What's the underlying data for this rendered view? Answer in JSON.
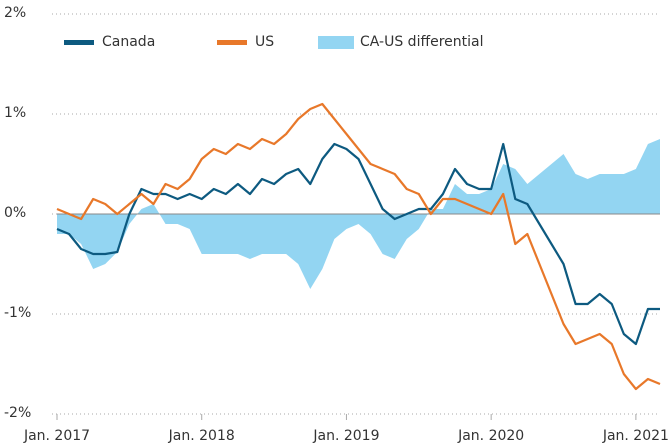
{
  "chart_data": {
    "type": "line",
    "x": [
      "2017-01",
      "2017-02",
      "2017-03",
      "2017-04",
      "2017-05",
      "2017-06",
      "2017-07",
      "2017-08",
      "2017-09",
      "2017-10",
      "2017-11",
      "2017-12",
      "2018-01",
      "2018-02",
      "2018-03",
      "2018-04",
      "2018-05",
      "2018-06",
      "2018-07",
      "2018-08",
      "2018-09",
      "2018-10",
      "2018-11",
      "2018-12",
      "2019-01",
      "2019-02",
      "2019-03",
      "2019-04",
      "2019-05",
      "2019-06",
      "2019-07",
      "2019-08",
      "2019-09",
      "2019-10",
      "2019-11",
      "2019-12",
      "2020-01",
      "2020-02",
      "2020-03",
      "2020-04",
      "2020-05",
      "2020-06",
      "2020-07",
      "2020-08",
      "2020-09",
      "2020-10",
      "2020-11",
      "2020-12",
      "2021-01",
      "2021-02",
      "2021-03"
    ],
    "series": [
      {
        "name": "CA-US differential",
        "kind": "area",
        "color": "#93d5f2",
        "values": [
          -0.2,
          -0.2,
          -0.3,
          -0.55,
          -0.5,
          -0.38,
          -0.1,
          0.05,
          0.1,
          -0.1,
          -0.1,
          -0.15,
          -0.4,
          -0.4,
          -0.4,
          -0.4,
          -0.45,
          -0.4,
          -0.4,
          -0.4,
          -0.5,
          -0.75,
          -0.55,
          -0.25,
          -0.15,
          -0.1,
          -0.2,
          -0.4,
          -0.45,
          -0.25,
          -0.15,
          0.05,
          0.05,
          0.3,
          0.2,
          0.2,
          0.25,
          0.5,
          0.45,
          0.3,
          0.4,
          0.5,
          0.6,
          0.4,
          0.35,
          0.4,
          0.4,
          0.4,
          0.45,
          0.7,
          0.75
        ]
      },
      {
        "name": "Canada",
        "kind": "line",
        "color": "#0d5a80",
        "values": [
          -0.15,
          -0.2,
          -0.35,
          -0.4,
          -0.4,
          -0.38,
          0.0,
          0.25,
          0.2,
          0.2,
          0.15,
          0.2,
          0.15,
          0.25,
          0.2,
          0.3,
          0.2,
          0.35,
          0.3,
          0.4,
          0.45,
          0.3,
          0.55,
          0.7,
          0.65,
          0.55,
          0.3,
          0.05,
          -0.05,
          0.0,
          0.05,
          0.05,
          0.2,
          0.45,
          0.3,
          0.25,
          0.25,
          0.7,
          0.15,
          0.1,
          -0.1,
          -0.3,
          -0.5,
          -0.9,
          -0.9,
          -0.8,
          -0.9,
          -1.2,
          -1.3,
          -0.95,
          -0.95
        ]
      },
      {
        "name": "US",
        "kind": "line",
        "color": "#e8782a",
        "values": [
          0.05,
          0.0,
          -0.05,
          0.15,
          0.1,
          0.0,
          0.1,
          0.2,
          0.1,
          0.3,
          0.25,
          0.35,
          0.55,
          0.65,
          0.6,
          0.7,
          0.65,
          0.75,
          0.7,
          0.8,
          0.95,
          1.05,
          1.1,
          0.95,
          0.8,
          0.65,
          0.5,
          0.45,
          0.4,
          0.25,
          0.2,
          0.0,
          0.15,
          0.15,
          0.1,
          0.05,
          0.0,
          0.2,
          -0.3,
          -0.2,
          -0.5,
          -0.8,
          -1.1,
          -1.3,
          -1.25,
          -1.2,
          -1.3,
          -1.6,
          -1.75,
          -1.65,
          -1.7
        ]
      }
    ],
    "xlim": [
      "2017-01",
      "2021-03"
    ],
    "xticks": [
      {
        "value": "2017-01",
        "label": "Jan. 2017"
      },
      {
        "value": "2018-01",
        "label": "Jan. 2018"
      },
      {
        "value": "2019-01",
        "label": "Jan. 2019"
      },
      {
        "value": "2020-01",
        "label": "Jan. 2020"
      },
      {
        "value": "2021-01",
        "label": "Jan. 2021"
      }
    ],
    "ylim": [
      -2,
      2
    ],
    "yticks": [
      {
        "value": -2,
        "label": "-2%"
      },
      {
        "value": -1,
        "label": "-1%"
      },
      {
        "value": 0,
        "label": "0%"
      },
      {
        "value": 1,
        "label": "1%"
      },
      {
        "value": 2,
        "label": "2%"
      }
    ],
    "grid": true,
    "legend": "top"
  }
}
